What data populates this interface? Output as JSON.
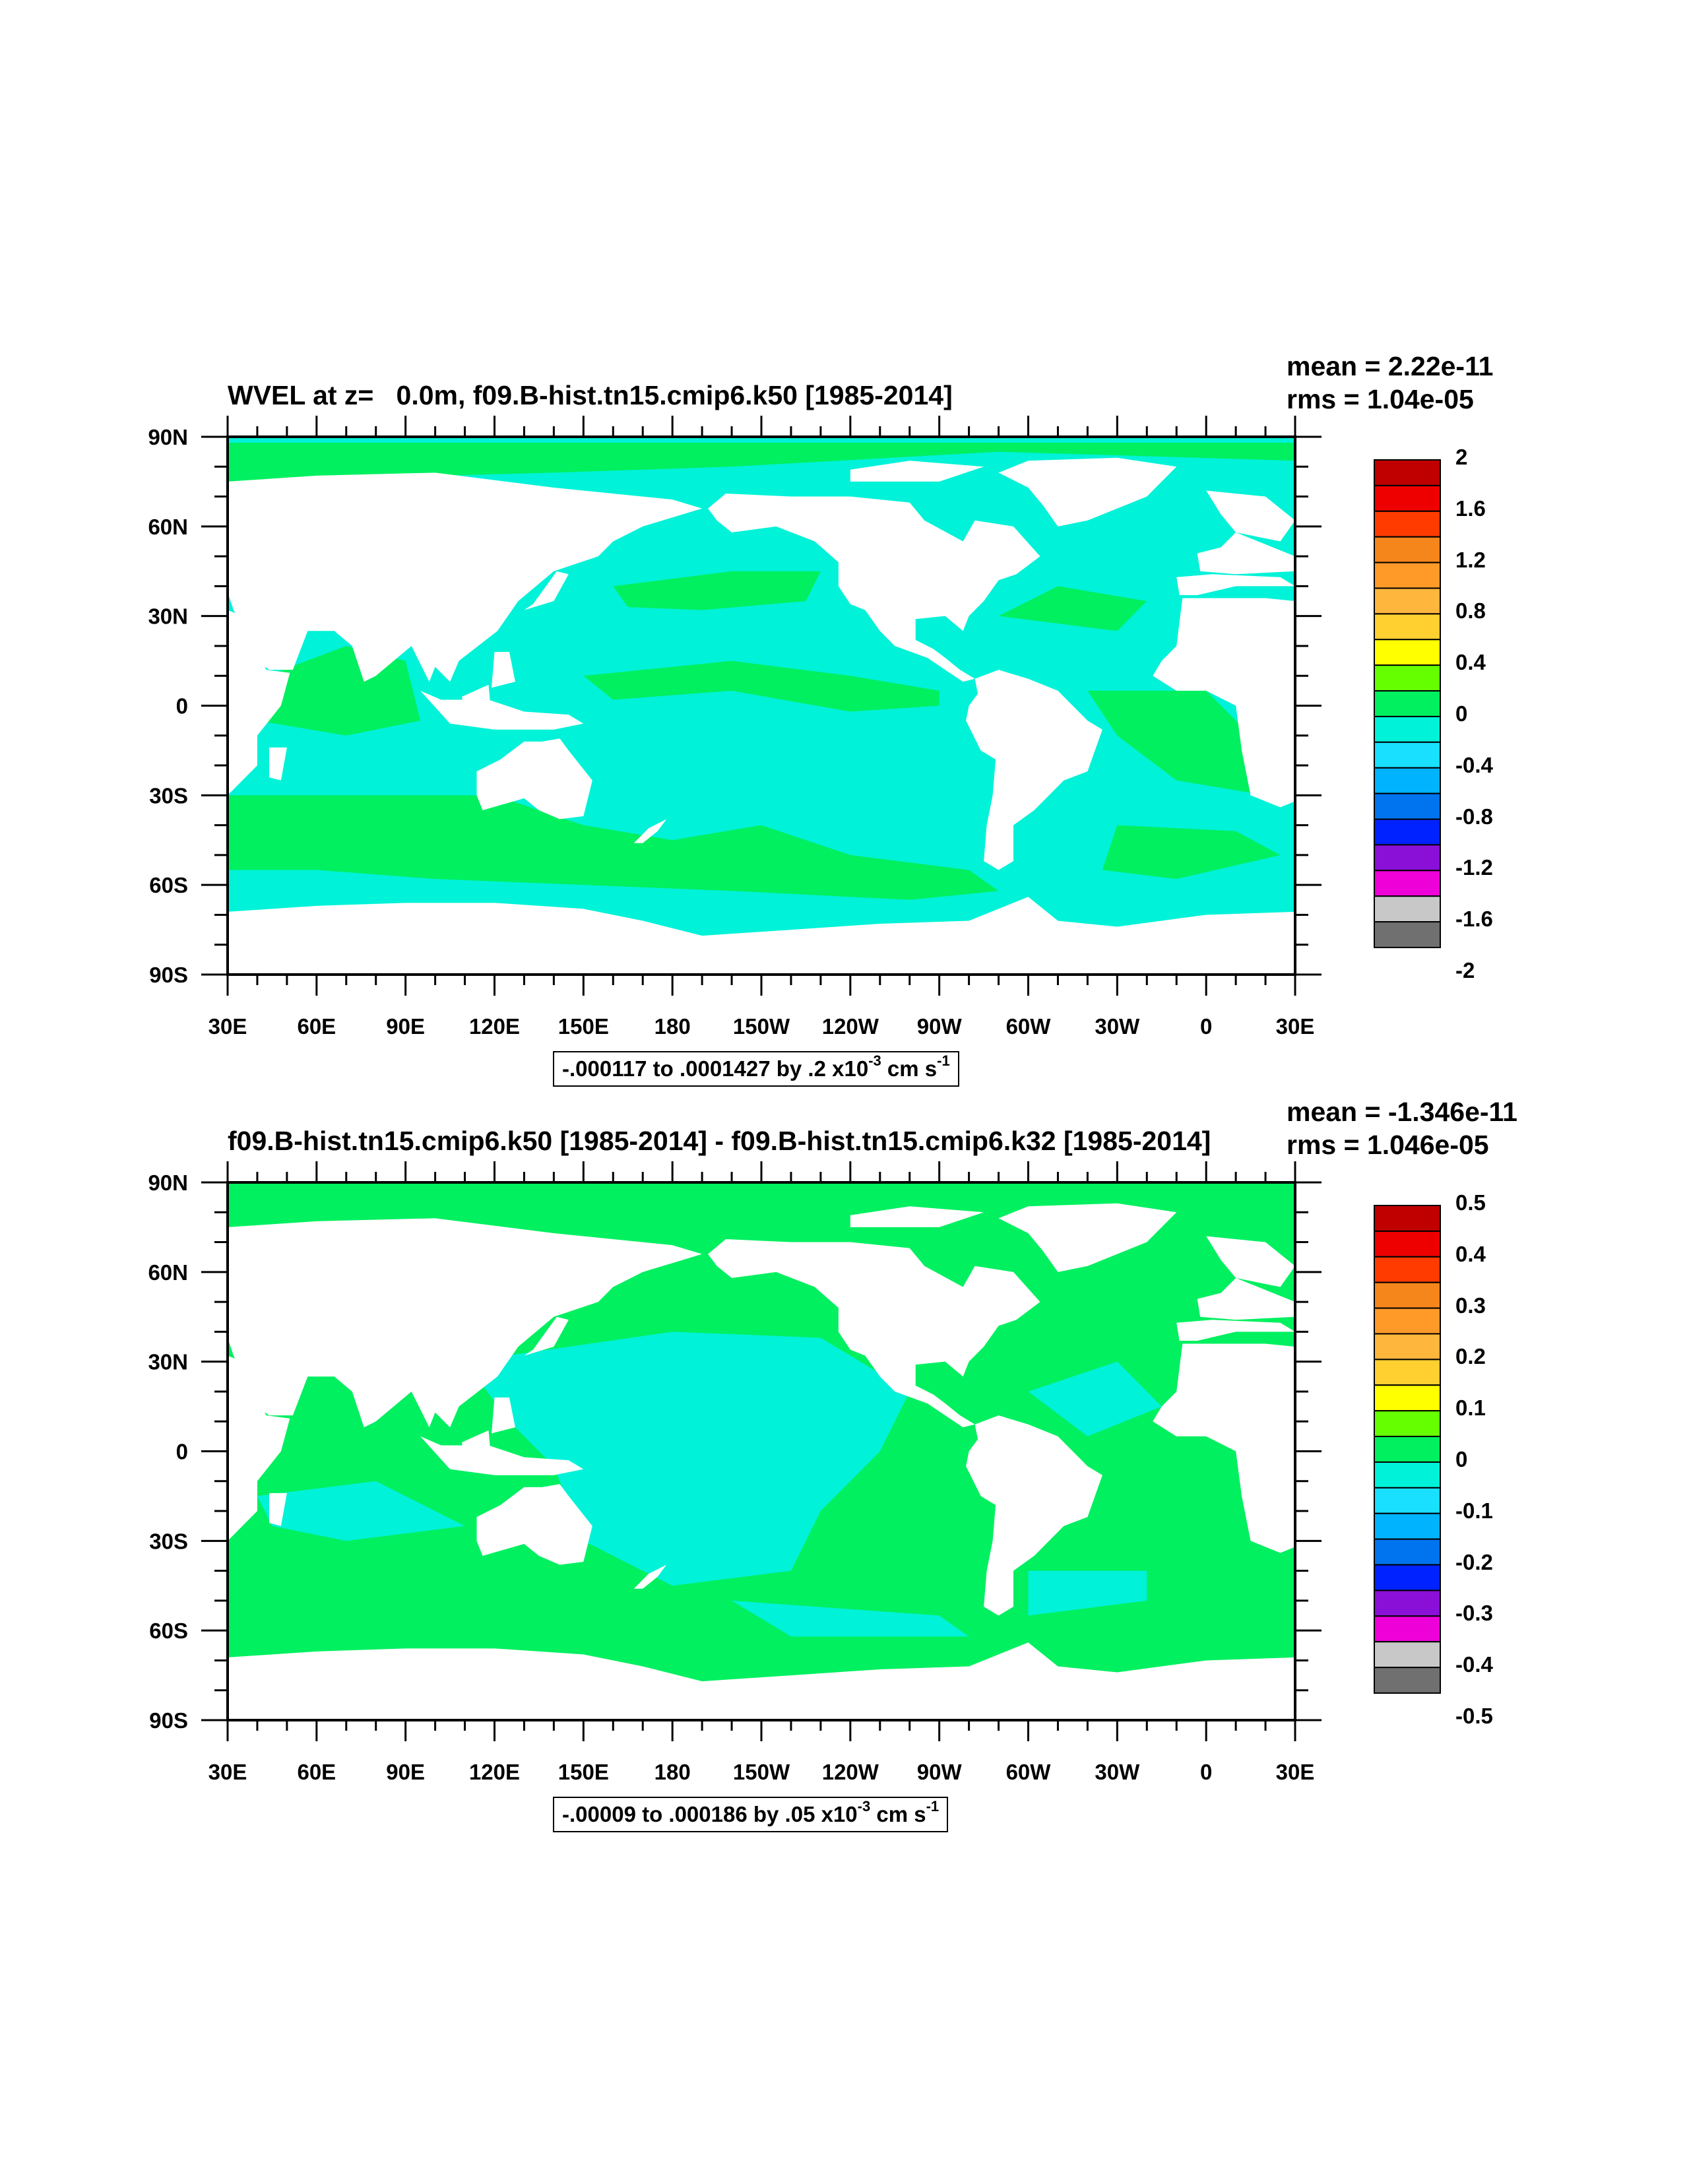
{
  "panels": [
    {
      "id": "top",
      "title": "WVEL at z=   0.0m, f09.B-hist.tn15.cmip6.k50 [1985-2014]",
      "mean_text": "mean = 2.22e-11",
      "rms_text": "rms = 1.04e-05",
      "range_prefix": "-.000117 to .0001427 by .2 x10",
      "range_exp": "-3",
      "range_unit": " cm s",
      "range_unit_exp": "-1",
      "colorbar_labels": [
        "2",
        "1.6",
        "1.2",
        "0.8",
        "0.4",
        "0",
        "-0.4",
        "-0.8",
        "-1.2",
        "-1.6",
        "-2"
      ]
    },
    {
      "id": "bottom",
      "title": "f09.B-hist.tn15.cmip6.k50 [1985-2014] - f09.B-hist.tn15.cmip6.k32 [1985-2014]",
      "mean_text": "mean = -1.346e-11",
      "rms_text": "rms = 1.046e-05",
      "range_prefix": "-.00009 to .000186 by .05 x10",
      "range_exp": "-3",
      "range_unit": " cm s",
      "range_unit_exp": "-1",
      "colorbar_labels": [
        "0.5",
        "0.4",
        "0.3",
        "0.2",
        "0.1",
        "0",
        "-0.1",
        "-0.2",
        "-0.3",
        "-0.4",
        "-0.5"
      ]
    }
  ],
  "axes": {
    "x_ticks": [
      "30E",
      "60E",
      "90E",
      "120E",
      "150E",
      "180",
      "150W",
      "120W",
      "90W",
      "60W",
      "30W",
      "0",
      "30E"
    ],
    "y_ticks": [
      "90N",
      "60N",
      "30N",
      "0",
      "30S",
      "60S",
      "90S"
    ]
  },
  "colors": {
    "ocean_positive": "#00f060",
    "ocean_negative": "#00f2d8",
    "land": "#ffffff",
    "colorbar": [
      "#c00000",
      "#ee0000",
      "#ff3b00",
      "#f5861c",
      "#ff9a28",
      "#ffb63c",
      "#ffd030",
      "#ffff00",
      "#66ff00",
      "#00f060",
      "#00f2d8",
      "#19e0ff",
      "#00b3ff",
      "#0074ee",
      "#0022ff",
      "#8a10d8",
      "#ee00d8",
      "#c8c8c8",
      "#707070"
    ]
  },
  "chart_data": [
    {
      "type": "heatmap",
      "title": "WVEL at z=   0.0m, f09.B-hist.tn15.cmip6.k50 [1985-2014]",
      "x_tick_labels": [
        "30E",
        "60E",
        "90E",
        "120E",
        "150E",
        "180",
        "150W",
        "120W",
        "90W",
        "60W",
        "30W",
        "0",
        "30E"
      ],
      "y_tick_labels": [
        "90N",
        "60N",
        "30N",
        "0",
        "30S",
        "60S",
        "90S"
      ],
      "xlim": [
        30,
        390
      ],
      "ylim": [
        -90,
        90
      ],
      "colorbar_levels": [
        -2,
        -1.6,
        -1.2,
        -0.8,
        -0.4,
        0,
        0.4,
        0.8,
        1.2,
        1.6,
        2
      ],
      "colorbar_scale": "x10^-3 cm s^-1",
      "data_min": -0.000117,
      "data_max": 0.0001427,
      "contour_interval": 0.2,
      "mean": 2.22e-11,
      "rms": 1.04e-05
    },
    {
      "type": "heatmap",
      "title": "f09.B-hist.tn15.cmip6.k50 [1985-2014] - f09.B-hist.tn15.cmip6.k32 [1985-2014]",
      "x_tick_labels": [
        "30E",
        "60E",
        "90E",
        "120E",
        "150E",
        "180",
        "150W",
        "120W",
        "90W",
        "60W",
        "30W",
        "0",
        "30E"
      ],
      "y_tick_labels": [
        "90N",
        "60N",
        "30N",
        "0",
        "30S",
        "60S",
        "90S"
      ],
      "xlim": [
        30,
        390
      ],
      "ylim": [
        -90,
        90
      ],
      "colorbar_levels": [
        -0.5,
        -0.4,
        -0.3,
        -0.2,
        -0.1,
        0,
        0.1,
        0.2,
        0.3,
        0.4,
        0.5
      ],
      "colorbar_scale": "x10^-3 cm s^-1",
      "data_min": -9e-05,
      "data_max": 0.000186,
      "contour_interval": 0.05,
      "mean": -1.346e-11,
      "rms": 1.046e-05
    }
  ]
}
